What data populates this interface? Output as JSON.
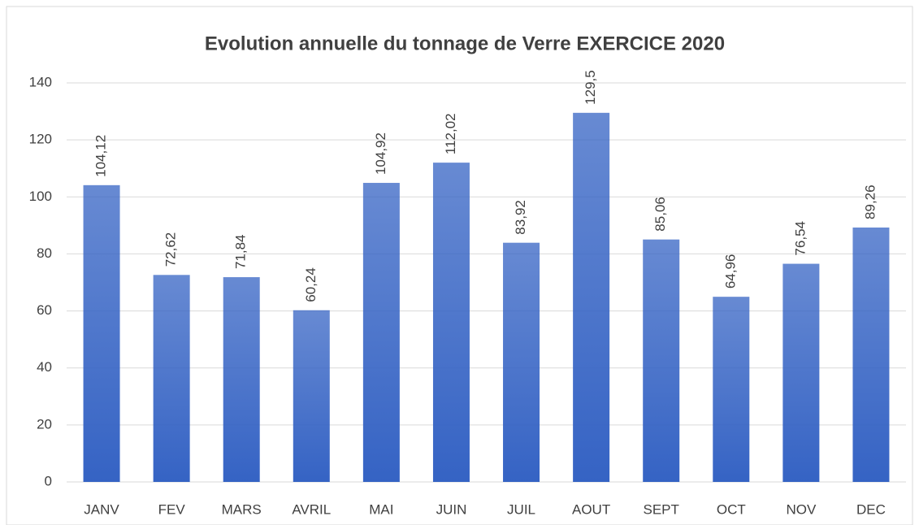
{
  "chart_data": {
    "type": "bar",
    "title": "Evolution annuelle du tonnage de Verre EXERCICE 2020",
    "categories": [
      "JANV",
      "FEV",
      "MARS",
      "AVRIL",
      "MAI",
      "JUIN",
      "JUIL",
      "AOUT",
      "SEPT",
      "OCT",
      "NOV",
      "DEC"
    ],
    "values": [
      104.12,
      72.62,
      71.84,
      60.24,
      104.92,
      112.02,
      83.92,
      129.5,
      85.06,
      64.96,
      76.54,
      89.26
    ],
    "value_labels": [
      "104,12",
      "72,62",
      "71,84",
      "60,24",
      "104,92",
      "112,02",
      "83,92",
      "129,5",
      "85,06",
      "64,96",
      "76,54",
      "89,26"
    ],
    "color": "#3563c4",
    "ylim": [
      0,
      140
    ],
    "yticks": [
      0,
      20,
      40,
      60,
      80,
      100,
      120,
      140
    ],
    "grid": true
  }
}
